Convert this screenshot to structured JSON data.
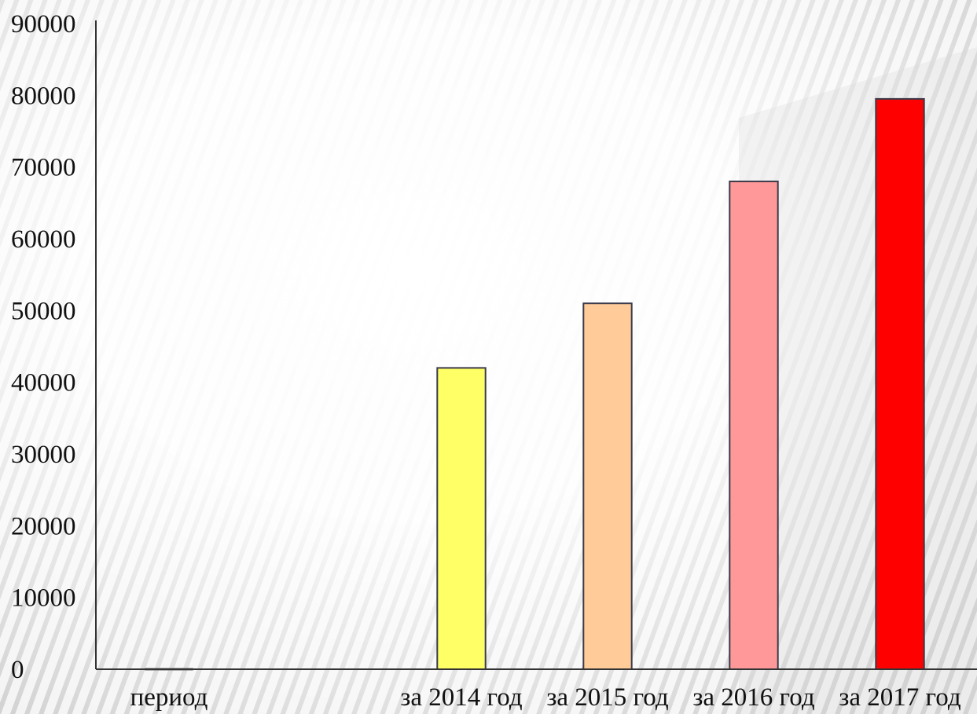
{
  "chart_data": {
    "type": "bar",
    "categories": [
      "период",
      "",
      "за 2014 год",
      "за 2015 год",
      "за 2016 год",
      "за 2017 год"
    ],
    "values": [
      0,
      0,
      42000,
      51000,
      68000,
      79500
    ],
    "colors": [
      "#FFFF66",
      "#FFCC99",
      "#FF9999",
      "#FF0000"
    ],
    "title": "",
    "xlabel": "",
    "ylabel": "",
    "ylim": [
      0,
      90000
    ],
    "yticks": [
      0,
      10000,
      20000,
      30000,
      40000,
      50000,
      60000,
      70000,
      80000,
      90000
    ],
    "grid": false,
    "legend": "none"
  }
}
